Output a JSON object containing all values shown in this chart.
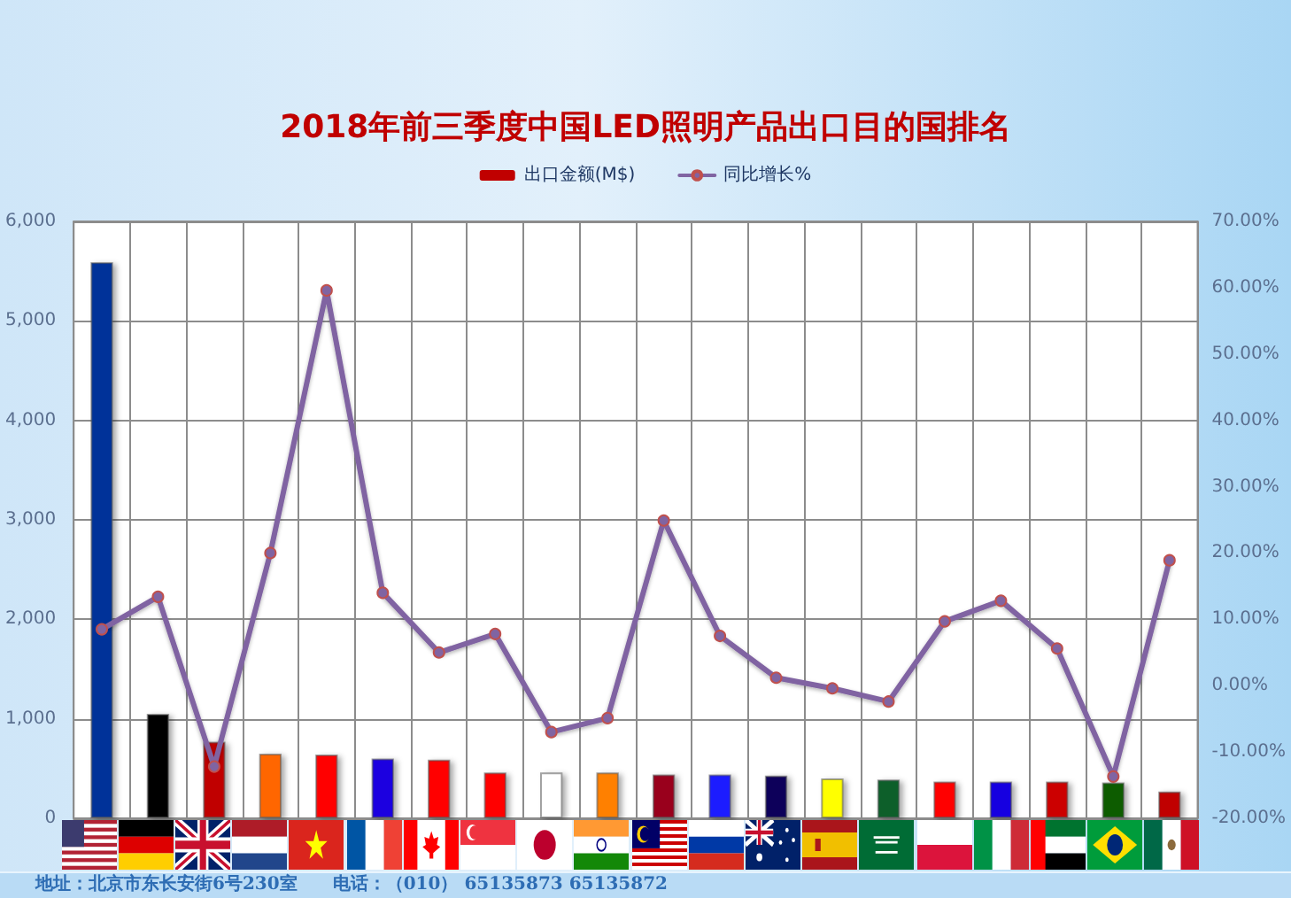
{
  "chart_data": {
    "type": "bar",
    "title": "2018年前三季度中国LED照明产品出口目的国排名",
    "categories": [
      null,
      null,
      null,
      null,
      null,
      null,
      null,
      null,
      null,
      null,
      null,
      null,
      null,
      null,
      null,
      null,
      null,
      null,
      null,
      null
    ],
    "series": [
      {
        "name": "出口金额(M$)",
        "color": "#c00000",
        "colors": [
          "#003399",
          "#000000",
          "#c00000",
          "#ff6600",
          "#ff0000",
          "#1a00e0",
          "#ff0000",
          "#ff0000",
          "#ffffff",
          "#ff8000",
          "#99001f",
          "#1a1aff",
          "#10005a",
          "#ffff00",
          "#0b5e2a",
          "#ff0000",
          "#1400e0",
          "#cc0000",
          "#0a5c00",
          "#c00000"
        ],
        "values": [
          5590,
          1050,
          770,
          650,
          640,
          600,
          590,
          460,
          460,
          460,
          440,
          440,
          430,
          400,
          390,
          370,
          370,
          370,
          360,
          270
        ]
      },
      {
        "name": "同比增长%",
        "type": "line",
        "axis": "y2",
        "color": "#8064a2",
        "values": [
          8.5,
          13.4,
          -12.2,
          20.0,
          59.6,
          14.0,
          5.0,
          7.8,
          -7.0,
          -4.9,
          24.9,
          7.5,
          1.2,
          -0.4,
          -2.4,
          9.7,
          12.8,
          5.6,
          -13.7,
          18.9
        ]
      }
    ],
    "ylim": [
      0,
      6000
    ],
    "yticks": [
      0,
      {
        "value": 1000,
        "label": "1,000"
      },
      {
        "value": 2000,
        "label": "2,000"
      },
      {
        "value": 3000,
        "label": "3,000"
      },
      {
        "value": 4000,
        "label": "4,000"
      },
      {
        "value": 5000,
        "label": "5,000"
      },
      {
        "value": 6000,
        "label": "6,000"
      }
    ],
    "y2lim": [
      -20,
      70
    ],
    "y2ticks": [
      {
        "value": -20,
        "label": "-20.00%"
      },
      {
        "value": -10,
        "label": "-10.00%"
      },
      {
        "value": 0,
        "label": "0.00%"
      },
      {
        "value": 10,
        "label": "10.00%"
      },
      {
        "value": 20,
        "label": "20.00%"
      },
      {
        "value": 30,
        "label": "30.00%"
      },
      {
        "value": 40,
        "label": "40.00%"
      },
      {
        "value": 50,
        "label": "50.00%"
      },
      {
        "value": 60,
        "label": "60.00%"
      },
      {
        "value": 70,
        "label": "70.00%"
      }
    ],
    "grid": true,
    "legend": "top",
    "marker": "circle",
    "line_style": "solid",
    "annotations": [
      "地址：北京市东长安街6号230室",
      "电话：（010） 65135873 65135872"
    ]
  }
}
